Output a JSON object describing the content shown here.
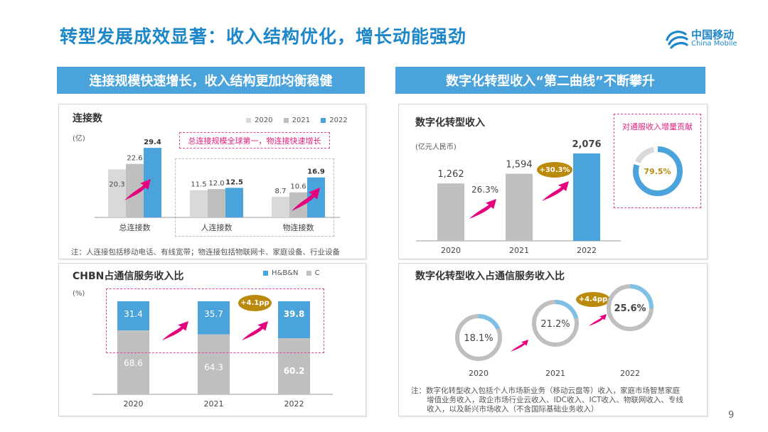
{
  "title": "转型发展成效显著：收入结构优化，增长动能强劲",
  "logo": {
    "cn": "中国移动",
    "en": "China Mobile"
  },
  "left_header": "连接规模快速增长，收入结构更加均衡稳健",
  "right_header": "数字化转型收入“第二曲线”不断攀升",
  "page_number": "9",
  "colors": {
    "accent": "#4aa3da",
    "gray_light": "#d9d9d9",
    "gray": "#bfbfbf",
    "magenta": "#e6007e",
    "gold": "#b98a0c",
    "title": "#1d87c9"
  },
  "chart_data": [
    {
      "type": "bar",
      "title": "连接数",
      "unit": "(亿)",
      "categories": [
        "总连接数",
        "人连接数",
        "物连接数"
      ],
      "series": [
        {
          "name": "2020",
          "values": [
            20.3,
            11.5,
            8.7
          ]
        },
        {
          "name": "2021",
          "values": [
            22.6,
            12.0,
            10.6
          ]
        },
        {
          "name": "2022",
          "values": [
            29.4,
            12.5,
            16.9
          ]
        }
      ],
      "legend": "top-right",
      "callout": "总连接规模全球第一，物连接快速增长",
      "note": "注：人连接包括移动电话、有线宽带；物连接包括物联网卡、家庭设备、行业设备"
    },
    {
      "type": "bar",
      "stacked": true,
      "title": "CHBN占通信服务收入比",
      "unit": "(%)",
      "categories": [
        "2020",
        "2021",
        "2022"
      ],
      "series": [
        {
          "name": "H&B&N",
          "values": [
            31.4,
            35.7,
            39.8
          ]
        },
        {
          "name": "C",
          "values": [
            68.6,
            64.3,
            60.2
          ]
        }
      ],
      "legend": "top-right",
      "badge": "+4.1pp"
    },
    {
      "type": "bar",
      "title": "数字化转型收入",
      "unit": "(亿元人民币)",
      "categories": [
        "2020",
        "2021",
        "2022"
      ],
      "values": [
        1262,
        1594,
        2076
      ],
      "value_labels": [
        "1,262",
        "1,594",
        "2,076"
      ],
      "growth_labels": [
        "26.3%",
        "+30.3%"
      ],
      "inset": {
        "title": "对通服收入增量贡献",
        "value": 79.5,
        "label": "79.5%"
      }
    },
    {
      "type": "pie",
      "variant": "donut",
      "title": "数字化转型收入占通信服务收入比",
      "categories": [
        "2020",
        "2021",
        "2022"
      ],
      "values": [
        18.1,
        21.2,
        25.6
      ],
      "value_labels": [
        "18.1%",
        "21.2%",
        "25.6%"
      ],
      "badge": "+4.4pp",
      "note": [
        "注：数字化转型收入包括个人市场新业务（移动云盘等）收入，家庭市场智慧家庭",
        "增值业务收入，政企市场行业云收入、IDC收入、ICT收入、物联网收入、专线",
        "收入，以及新兴市场收入（不含国际基础业务收入）"
      ]
    }
  ]
}
